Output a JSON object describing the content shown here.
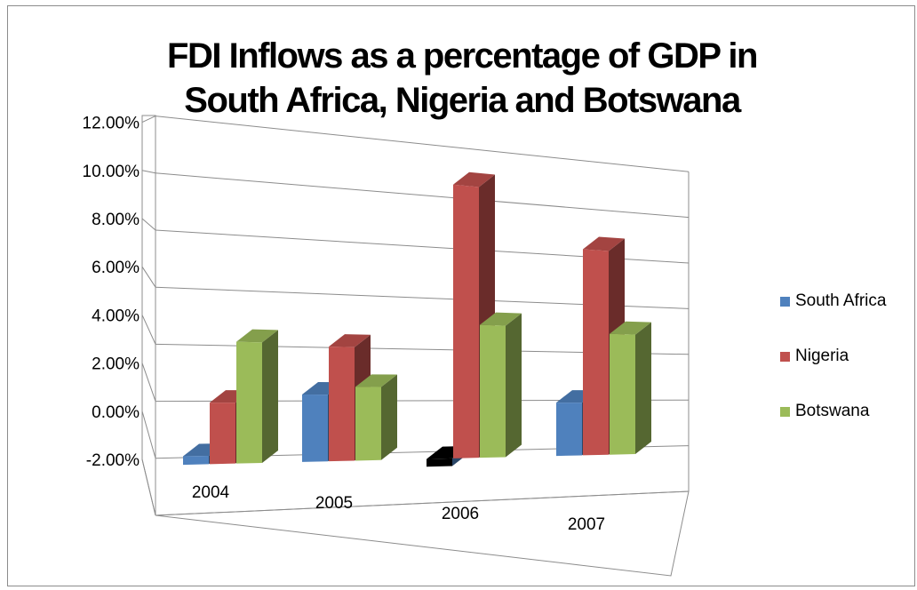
{
  "chart_data": {
    "type": "bar",
    "title": "FDI Inflows as a percentage of GDP in South Africa, Nigeria and Botswana",
    "title_lines": [
      "FDI Inflows as a percentage of GDP in",
      "South Africa, Nigeria and Botswana"
    ],
    "categories": [
      "2004",
      "2005",
      "2006",
      "2007"
    ],
    "series": [
      {
        "name": "South Africa",
        "color": "#4f81bd",
        "values": [
          0.3,
          2.5,
          -0.3,
          2.2
        ]
      },
      {
        "name": "Nigeria",
        "color": "#c0504d",
        "values": [
          2.2,
          4.3,
          10.8,
          8.6
        ]
      },
      {
        "name": "Botswana",
        "color": "#9bbb59",
        "values": [
          4.4,
          2.8,
          5.3,
          5.1
        ]
      }
    ],
    "ylim": [
      -2,
      12
    ],
    "y_ticks": [
      "-2.00%",
      "0.00%",
      "2.00%",
      "4.00%",
      "6.00%",
      "8.00%",
      "10.00%",
      "12.00%"
    ],
    "xlabel": "",
    "ylabel": "",
    "grid": true,
    "legend_position": "right",
    "style": "3d-clustered-column"
  }
}
